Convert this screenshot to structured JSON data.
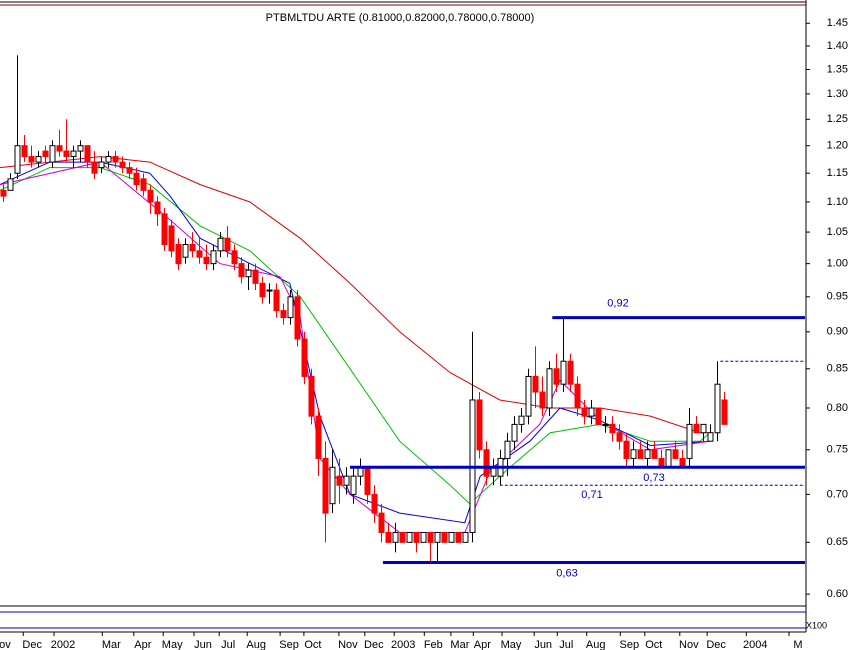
{
  "chart_data": {
    "type": "candlestick",
    "title": "PTBMLTDU ARTE (0.81000,0.82000,0.78000,0.78000)",
    "log": true,
    "ylim": [
      0.59,
      1.48
    ],
    "yticks": [
      {
        "value": 1.45,
        "label": "1.45"
      },
      {
        "value": 1.4,
        "label": "1.40"
      },
      {
        "value": 1.35,
        "label": "1.35"
      },
      {
        "value": 1.3,
        "label": "1.30"
      },
      {
        "value": 1.25,
        "label": "1.25"
      },
      {
        "value": 1.2,
        "label": "1.20"
      },
      {
        "value": 1.15,
        "label": "1.15"
      },
      {
        "value": 1.1,
        "label": "1.10"
      },
      {
        "value": 1.05,
        "label": "1.05"
      },
      {
        "value": 1.0,
        "label": "1.00"
      },
      {
        "value": 0.95,
        "label": "0.95"
      },
      {
        "value": 0.9,
        "label": "0.90"
      },
      {
        "value": 0.85,
        "label": "0.85"
      },
      {
        "value": 0.8,
        "label": "0.80"
      },
      {
        "value": 0.75,
        "label": "0.75"
      },
      {
        "value": 0.7,
        "label": "0.70"
      },
      {
        "value": 0.65,
        "label": "0.65"
      },
      {
        "value": 0.6,
        "label": "0.60"
      }
    ],
    "xlim": [
      0,
      115
    ],
    "xticks": [
      {
        "value": 0.7,
        "label": "ov"
      },
      {
        "value": 4.6,
        "label": "Dec"
      },
      {
        "value": 9,
        "label": "2002"
      },
      {
        "value": 15.9,
        "label": "Mar"
      },
      {
        "value": 20.4,
        "label": "Apr"
      },
      {
        "value": 24.6,
        "label": "May"
      },
      {
        "value": 29,
        "label": "Jun"
      },
      {
        "value": 32.6,
        "label": "Jul"
      },
      {
        "value": 36.6,
        "label": "Aug"
      },
      {
        "value": 41.3,
        "label": "Sep"
      },
      {
        "value": 44.7,
        "label": "Oct"
      },
      {
        "value": 49.7,
        "label": "Nov"
      },
      {
        "value": 53.4,
        "label": "Dec"
      },
      {
        "value": 57.6,
        "label": "2003"
      },
      {
        "value": 61.9,
        "label": "Feb"
      },
      {
        "value": 65.7,
        "label": "Mar"
      },
      {
        "value": 68.9,
        "label": "Apr"
      },
      {
        "value": 73,
        "label": "May"
      },
      {
        "value": 77.6,
        "label": "Jun"
      },
      {
        "value": 80.9,
        "label": "Jul"
      },
      {
        "value": 85.1,
        "label": "Aug"
      },
      {
        "value": 89.9,
        "label": "Sep"
      },
      {
        "value": 93.4,
        "label": "Oct"
      },
      {
        "value": 98.4,
        "label": "Nov"
      },
      {
        "value": 102.3,
        "label": "Dec"
      },
      {
        "value": 107.9,
        "label": "2004"
      },
      {
        "value": 114,
        "label": "M"
      }
    ],
    "up_color": "#ffffff",
    "down_color": "#ff0000",
    "candles": [
      [
        1.12,
        1.13,
        1.1,
        1.11
      ],
      [
        1.12,
        1.15,
        1.12,
        1.14
      ],
      [
        1.15,
        1.38,
        1.14,
        1.2
      ],
      [
        1.2,
        1.22,
        1.17,
        1.18
      ],
      [
        1.18,
        1.2,
        1.16,
        1.17
      ],
      [
        1.17,
        1.19,
        1.16,
        1.18
      ],
      [
        1.19,
        1.2,
        1.17,
        1.18
      ],
      [
        1.17,
        1.21,
        1.16,
        1.2
      ],
      [
        1.2,
        1.23,
        1.18,
        1.19
      ],
      [
        1.19,
        1.25,
        1.17,
        1.18
      ],
      [
        1.18,
        1.2,
        1.16,
        1.19
      ],
      [
        1.19,
        1.21,
        1.17,
        1.2
      ],
      [
        1.2,
        1.2,
        1.16,
        1.17
      ],
      [
        1.17,
        1.19,
        1.14,
        1.15
      ],
      [
        1.16,
        1.18,
        1.15,
        1.17
      ],
      [
        1.17,
        1.19,
        1.16,
        1.18
      ],
      [
        1.18,
        1.19,
        1.16,
        1.17
      ],
      [
        1.17,
        1.18,
        1.15,
        1.16
      ],
      [
        1.16,
        1.17,
        1.14,
        1.15
      ],
      [
        1.15,
        1.16,
        1.12,
        1.13
      ],
      [
        1.14,
        1.15,
        1.11,
        1.12
      ],
      [
        1.12,
        1.13,
        1.08,
        1.1
      ],
      [
        1.1,
        1.11,
        1.06,
        1.08
      ],
      [
        1.08,
        1.09,
        1.02,
        1.03
      ],
      [
        1.06,
        1.07,
        1.01,
        1.02
      ],
      [
        1.03,
        1.04,
        0.99,
        1.0
      ],
      [
        1.01,
        1.04,
        1.0,
        1.03
      ],
      [
        1.03,
        1.05,
        1.01,
        1.02
      ],
      [
        1.02,
        1.04,
        1.0,
        1.01
      ],
      [
        1.01,
        1.03,
        0.99,
        1.0
      ],
      [
        1.0,
        1.03,
        0.99,
        1.02
      ],
      [
        1.02,
        1.05,
        1.01,
        1.04
      ],
      [
        1.04,
        1.06,
        1.01,
        1.02
      ],
      [
        1.02,
        1.03,
        0.99,
        1.0
      ],
      [
        1.0,
        1.01,
        0.97,
        0.98
      ],
      [
        0.98,
        1.0,
        0.96,
        0.99
      ],
      [
        0.99,
        1.0,
        0.96,
        0.97
      ],
      [
        0.97,
        0.98,
        0.94,
        0.95
      ],
      [
        0.96,
        0.97,
        0.94,
        0.96
      ],
      [
        0.96,
        0.97,
        0.92,
        0.93
      ],
      [
        0.93,
        0.94,
        0.91,
        0.92
      ],
      [
        0.92,
        0.96,
        0.91,
        0.95
      ],
      [
        0.95,
        0.96,
        0.88,
        0.89
      ],
      [
        0.89,
        0.9,
        0.83,
        0.84
      ],
      [
        0.84,
        0.85,
        0.78,
        0.79
      ],
      [
        0.79,
        0.8,
        0.72,
        0.74
      ],
      [
        0.74,
        0.76,
        0.65,
        0.68
      ],
      [
        0.69,
        0.75,
        0.68,
        0.73
      ],
      [
        0.72,
        0.74,
        0.69,
        0.71
      ],
      [
        0.71,
        0.73,
        0.7,
        0.72
      ],
      [
        0.7,
        0.73,
        0.69,
        0.72
      ],
      [
        0.72,
        0.74,
        0.71,
        0.73
      ],
      [
        0.73,
        0.73,
        0.69,
        0.7
      ],
      [
        0.7,
        0.71,
        0.67,
        0.68
      ],
      [
        0.68,
        0.69,
        0.65,
        0.66
      ],
      [
        0.66,
        0.67,
        0.65,
        0.65
      ],
      [
        0.65,
        0.67,
        0.64,
        0.66
      ],
      [
        0.66,
        0.66,
        0.65,
        0.65
      ],
      [
        0.65,
        0.66,
        0.65,
        0.66
      ],
      [
        0.66,
        0.66,
        0.64,
        0.65
      ],
      [
        0.65,
        0.66,
        0.65,
        0.66
      ],
      [
        0.66,
        0.66,
        0.63,
        0.65
      ],
      [
        0.65,
        0.66,
        0.63,
        0.66
      ],
      [
        0.66,
        0.66,
        0.65,
        0.65
      ],
      [
        0.65,
        0.66,
        0.65,
        0.66
      ],
      [
        0.66,
        0.66,
        0.65,
        0.65
      ],
      [
        0.65,
        0.66,
        0.65,
        0.66
      ],
      [
        0.66,
        0.9,
        0.65,
        0.81
      ],
      [
        0.81,
        0.82,
        0.74,
        0.75
      ],
      [
        0.75,
        0.76,
        0.71,
        0.72
      ],
      [
        0.72,
        0.74,
        0.71,
        0.73
      ],
      [
        0.72,
        0.75,
        0.71,
        0.74
      ],
      [
        0.74,
        0.77,
        0.72,
        0.76
      ],
      [
        0.76,
        0.79,
        0.75,
        0.78
      ],
      [
        0.78,
        0.8,
        0.77,
        0.79
      ],
      [
        0.79,
        0.85,
        0.78,
        0.84
      ],
      [
        0.84,
        0.88,
        0.8,
        0.82
      ],
      [
        0.82,
        0.84,
        0.79,
        0.8
      ],
      [
        0.8,
        0.86,
        0.79,
        0.85
      ],
      [
        0.85,
        0.87,
        0.82,
        0.83
      ],
      [
        0.83,
        0.92,
        0.82,
        0.86
      ],
      [
        0.86,
        0.87,
        0.82,
        0.83
      ],
      [
        0.83,
        0.84,
        0.79,
        0.8
      ],
      [
        0.8,
        0.81,
        0.78,
        0.79
      ],
      [
        0.79,
        0.81,
        0.78,
        0.8
      ],
      [
        0.8,
        0.8,
        0.78,
        0.78
      ],
      [
        0.78,
        0.79,
        0.77,
        0.78
      ],
      [
        0.78,
        0.79,
        0.76,
        0.77
      ],
      [
        0.77,
        0.78,
        0.75,
        0.76
      ],
      [
        0.76,
        0.77,
        0.73,
        0.74
      ],
      [
        0.74,
        0.76,
        0.73,
        0.75
      ],
      [
        0.75,
        0.76,
        0.74,
        0.74
      ],
      [
        0.74,
        0.76,
        0.73,
        0.75
      ],
      [
        0.75,
        0.76,
        0.74,
        0.74
      ],
      [
        0.74,
        0.75,
        0.73,
        0.73
      ],
      [
        0.73,
        0.75,
        0.73,
        0.75
      ],
      [
        0.75,
        0.76,
        0.74,
        0.74
      ],
      [
        0.74,
        0.75,
        0.73,
        0.73
      ],
      [
        0.74,
        0.8,
        0.73,
        0.78
      ],
      [
        0.78,
        0.79,
        0.77,
        0.77
      ],
      [
        0.77,
        0.78,
        0.76,
        0.78
      ],
      [
        0.76,
        0.78,
        0.76,
        0.77
      ],
      [
        0.77,
        0.86,
        0.76,
        0.83
      ],
      [
        0.81,
        0.82,
        0.78,
        0.78
      ]
    ],
    "series": [
      {
        "color": "#e00000",
        "x": [
          0,
          14.3,
          21.4,
          28.6,
          35.7,
          42.9,
          50,
          57.1,
          64.3,
          71.4,
          78.6,
          85.7,
          92.9,
          100,
          101.4
        ],
        "values": [
          1.16,
          1.18,
          1.17,
          1.13,
          1.1,
          1.04,
          0.97,
          0.9,
          0.845,
          0.81,
          0.8,
          0.8,
          0.79,
          0.77,
          0.77
        ]
      },
      {
        "color": "#00c000",
        "x": [
          0,
          7.1,
          14.3,
          21.4,
          28.6,
          35.7,
          42.9,
          50,
          57.1,
          64.3,
          67.1,
          71.4,
          78.6,
          85.7,
          92.9,
          100,
          101.4
        ],
        "values": [
          1.12,
          1.16,
          1.16,
          1.13,
          1.06,
          1.02,
          0.95,
          0.85,
          0.76,
          0.71,
          0.69,
          0.72,
          0.77,
          0.78,
          0.76,
          0.76,
          0.77
        ]
      },
      {
        "color": "#0000e0",
        "x": [
          0,
          7.1,
          14.3,
          21.4,
          24.3,
          28.6,
          35.7,
          41.4,
          45.7,
          50,
          57.1,
          66.4,
          68.6,
          75.7,
          80,
          85.7,
          92.9,
          101.4
        ],
        "values": [
          1.13,
          1.17,
          1.17,
          1.15,
          1.11,
          1.04,
          1.0,
          0.97,
          0.79,
          0.7,
          0.68,
          0.67,
          0.72,
          0.76,
          0.8,
          0.785,
          0.755,
          0.76
        ]
      },
      {
        "color": "#d000d0",
        "x": [
          0,
          14.3,
          24.3,
          31.4,
          40,
          42.9,
          45.7,
          50,
          57.1,
          66.4,
          70,
          77.1,
          80,
          85.7,
          92.9,
          101.4
        ],
        "values": [
          1.13,
          1.17,
          1.07,
          1.0,
          0.98,
          0.92,
          0.74,
          0.7,
          0.66,
          0.66,
          0.725,
          0.78,
          0.835,
          0.785,
          0.75,
          0.76
        ]
      }
    ],
    "levels": [
      {
        "value": 0.92,
        "label": "0,92",
        "x": [
          78.9,
          115
        ],
        "style": "solid"
      },
      {
        "value": 0.73,
        "label": "0,73",
        "x": [
          50,
          115
        ],
        "style": "solid"
      },
      {
        "value": 0.71,
        "label": "0,71",
        "x": [
          71.4,
          115
        ],
        "style": "dashed"
      },
      {
        "value": 0.63,
        "label": "0,63",
        "x": [
          54.7,
          115
        ],
        "style": "solid"
      },
      {
        "value": 0.86,
        "x": [
          102.9,
          115
        ],
        "style": "dashed"
      }
    ],
    "level_color": "#0000c0",
    "indicator_label": "X100"
  }
}
